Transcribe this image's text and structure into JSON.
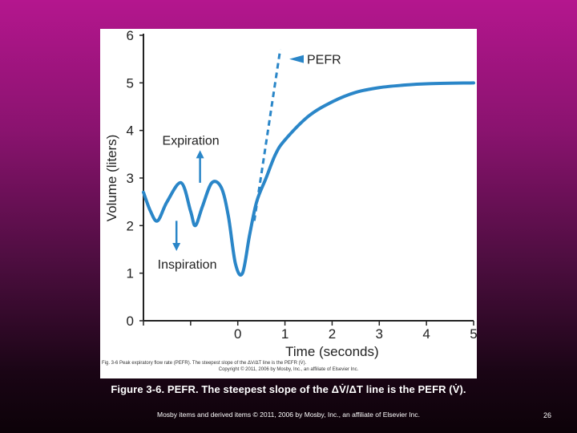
{
  "chart_data": {
    "type": "line",
    "title": "",
    "xlabel": "Time (seconds)",
    "ylabel": "Volume (liters)",
    "xlim": [
      -2,
      5
    ],
    "ylim": [
      0,
      6
    ],
    "x_ticks": [
      "0",
      "1",
      "2",
      "3",
      "4",
      "5"
    ],
    "y_ticks": [
      "0",
      "1",
      "2",
      "3",
      "4",
      "5",
      "6"
    ],
    "grid": false,
    "series": [
      {
        "values": [
          {
            "x": -2.0,
            "y": 2.7
          },
          {
            "x": -1.85,
            "y": 2.3
          },
          {
            "x": -1.7,
            "y": 2.1
          },
          {
            "x": -1.5,
            "y": 2.5
          },
          {
            "x": -1.2,
            "y": 2.9
          },
          {
            "x": -1.0,
            "y": 2.3
          },
          {
            "x": -0.9,
            "y": 2.0
          },
          {
            "x": -0.75,
            "y": 2.4
          },
          {
            "x": -0.55,
            "y": 2.9
          },
          {
            "x": -0.35,
            "y": 2.8
          },
          {
            "x": -0.2,
            "y": 2.2
          },
          {
            "x": -0.05,
            "y": 1.2
          },
          {
            "x": 0.1,
            "y": 1.0
          },
          {
            "x": 0.25,
            "y": 1.8
          },
          {
            "x": 0.4,
            "y": 2.5
          },
          {
            "x": 0.6,
            "y": 3.0
          },
          {
            "x": 0.8,
            "y": 3.5
          },
          {
            "x": 1.0,
            "y": 3.8
          },
          {
            "x": 1.5,
            "y": 4.3
          },
          {
            "x": 2.0,
            "y": 4.6
          },
          {
            "x": 2.5,
            "y": 4.8
          },
          {
            "x": 3.0,
            "y": 4.9
          },
          {
            "x": 3.5,
            "y": 4.95
          },
          {
            "x": 4.0,
            "y": 4.98
          },
          {
            "x": 5.0,
            "y": 5.0
          }
        ],
        "color": "#2a86c8"
      }
    ],
    "pefr_line": {
      "values": [
        {
          "x": 0.35,
          "y": 2.1
        },
        {
          "x": 0.9,
          "y": 5.7
        }
      ],
      "color": "#2a86c8",
      "dashed": true
    },
    "annotations": [
      {
        "text": "PEFR",
        "x": 1.5,
        "y": 5.5
      },
      {
        "text": "Expiration",
        "x": -1.6,
        "y": 3.8
      },
      {
        "text": "Inspiration",
        "x": -1.7,
        "y": 1.2
      }
    ]
  },
  "figure": {
    "credit_line1": "Fig. 3-6  Peak expiratory flow rate (PEFR). The steepest slope of the ΔV/ΔT line is the PEFR (V̇).",
    "credit_line2": "Copyright © 2011, 2006 by Mosby, Inc., an affiliate of Elsevier Inc."
  },
  "slide": {
    "caption": "Figure 3-6. PEFR. The steepest slope of the ΔV̇/ΔT line is the PEFR (V̇).",
    "footer": "Mosby items and derived items © 2011, 2006 by Mosby, Inc., an affiliate of Elsevier Inc.",
    "page_number": "26"
  },
  "colors": {
    "curve": "#2a86c8",
    "axis": "#222222",
    "arrow": "#2a86c8",
    "background_top": "#b4168e",
    "background_bottom": "#0c0208"
  }
}
